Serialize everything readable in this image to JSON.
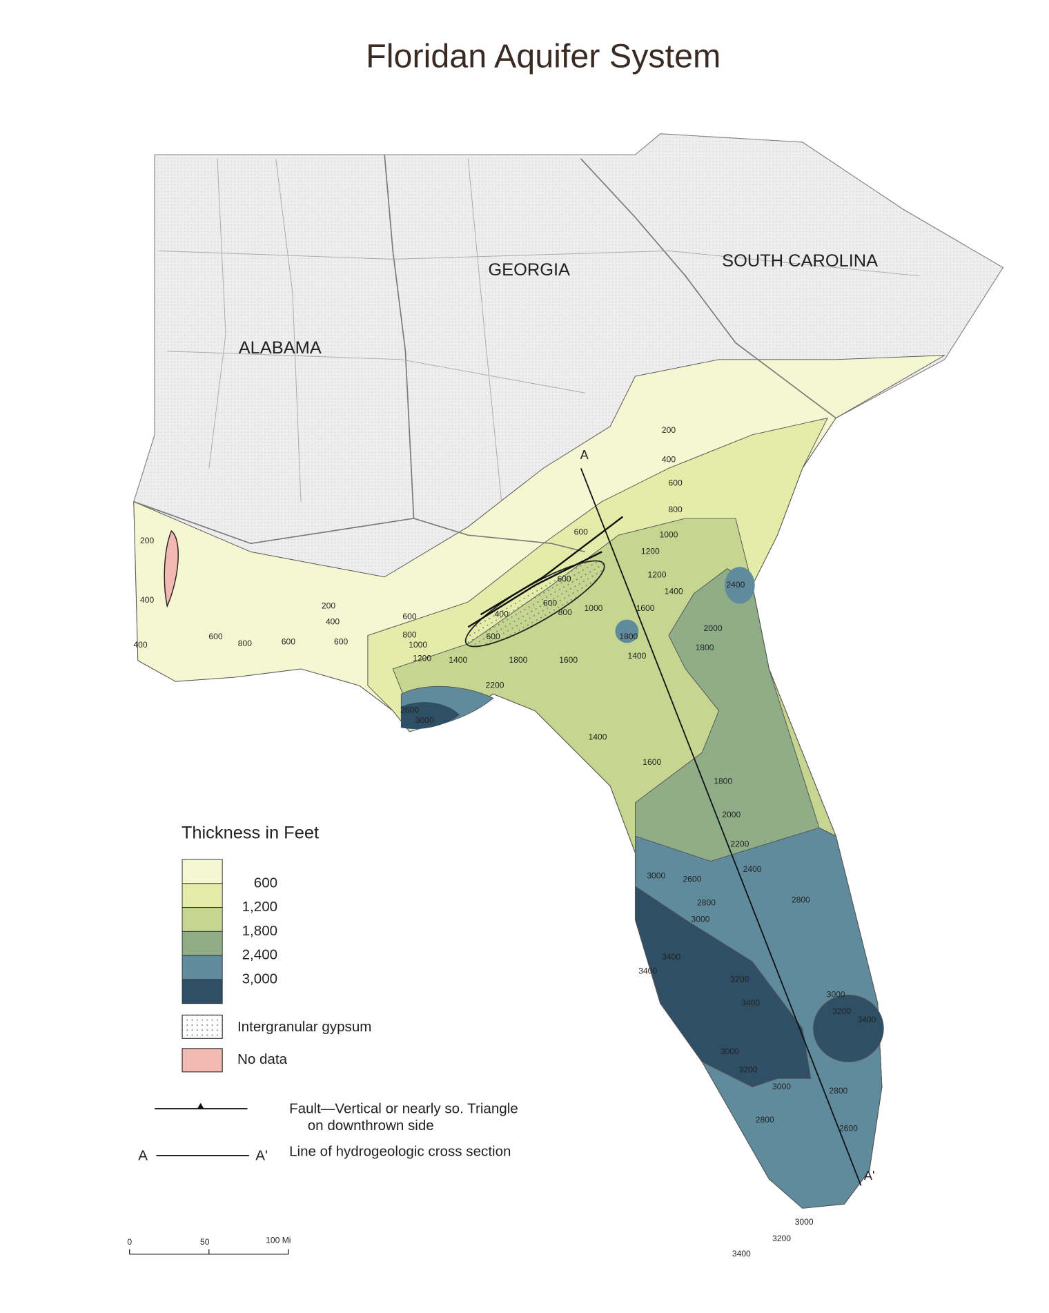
{
  "header": {
    "title": "Floridan Aquifer System"
  },
  "states": [
    "GEORGIA",
    "SOUTH CAROLINA",
    "ALABAMA"
  ],
  "section_labels": {
    "start": "A",
    "end": "A'"
  },
  "contours": [
    "200",
    "400",
    "400",
    "600",
    "800",
    "600",
    "600",
    "200",
    "400",
    "600",
    "800",
    "1000",
    "1200",
    "1400",
    "1800",
    "2200",
    "2600",
    "3000",
    "200",
    "400",
    "600",
    "800",
    "1000",
    "1200",
    "1200",
    "1400",
    "1600",
    "600",
    "600",
    "600",
    "800",
    "1000",
    "400",
    "600",
    "1800",
    "1400",
    "1600",
    "2000",
    "1800",
    "2400",
    "1400",
    "1600",
    "1800",
    "2000",
    "2200",
    "2400",
    "2600",
    "2800",
    "2800",
    "3000",
    "3000",
    "3400",
    "3400",
    "3200",
    "3400",
    "3000",
    "3200",
    "3400",
    "3000",
    "3200",
    "3000",
    "2800",
    "2800",
    "2600",
    "3000",
    "3200",
    "3400"
  ],
  "legend": {
    "title": "Thickness in Feet",
    "breaks": [
      "600",
      "1,200",
      "1,800",
      "2,400",
      "3,000"
    ],
    "colors": [
      "#f5f7d2",
      "#e4eca9",
      "#c6d58f",
      "#8fae88",
      "#5f8b9d",
      "#2f4f66"
    ],
    "gypsum": "Intergranular gypsum",
    "no_data": "No data",
    "fault_line1": "Fault—Vertical or nearly so. Triangle",
    "fault_line2": "on downthrown side",
    "section_start": "A",
    "section_end": "A'",
    "section_text": "Line of hydrogeologic cross section"
  },
  "scale": [
    "0",
    "50",
    "100 Mi"
  ]
}
